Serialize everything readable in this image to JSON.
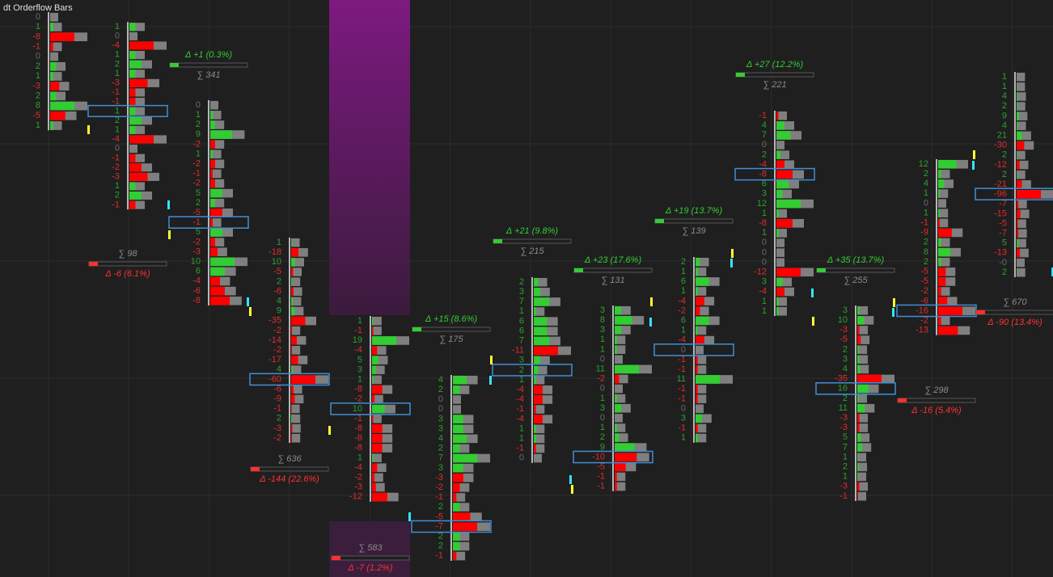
{
  "title": "dt Orderflow Bars",
  "bars": [
    {
      "rows": [
        0,
        1,
        -8,
        -1,
        0,
        2,
        1,
        -3,
        2,
        8,
        -5,
        1
      ]
    },
    {
      "rows": [
        1,
        0,
        -4,
        1,
        2,
        1,
        -3,
        -1,
        -1,
        1,
        2,
        1,
        -4,
        0,
        -1,
        -2,
        -3,
        1,
        2,
        -1
      ],
      "sum": "∑ 98",
      "delta": "Δ -6 (6.1%)"
    },
    {
      "rows": [
        0,
        1,
        2,
        9,
        -2,
        1,
        -2,
        -1,
        -2,
        5,
        2,
        -5,
        -1,
        5,
        -2,
        -3,
        10,
        6,
        -4,
        -6,
        -8
      ],
      "sum": "∑ 341",
      "delta": "Δ +1 (0.3%)"
    },
    {
      "rows": [
        1,
        -18,
        10,
        -5,
        2,
        -6,
        4,
        9,
        -35,
        -2,
        -14,
        -2,
        -17,
        4,
        -60,
        -6,
        -9,
        -1,
        2,
        -3,
        -2
      ],
      "sum": "∑ 636",
      "delta": "Δ -144 (22.6%)"
    },
    {
      "rows": [
        1,
        -1,
        19,
        -4,
        5,
        3,
        1,
        -8,
        -2,
        10,
        -1,
        -8,
        -8,
        -8,
        1,
        -4,
        -2,
        -3,
        -12
      ],
      "sum": "∑ 583",
      "delta": "Δ -7 (1.2%)"
    },
    {
      "rows": [
        4,
        2,
        0,
        0,
        3,
        3,
        4,
        2,
        7,
        3,
        -3,
        -2,
        -1,
        2,
        -5,
        -7,
        2,
        2,
        -1
      ],
      "sum": "∑ 175",
      "delta": "Δ +15 (8.6%)"
    },
    {
      "rows": [
        2,
        3,
        7,
        1,
        6,
        6,
        7,
        -11,
        3,
        2,
        1,
        -4,
        -4,
        -1,
        -4,
        1,
        1,
        -1,
        0
      ],
      "sum": "∑ 215",
      "delta": "Δ +21 (9.8%)"
    },
    {
      "rows": [
        3,
        8,
        3,
        1,
        1,
        0,
        11,
        -2,
        0,
        1,
        3,
        0,
        1,
        2,
        9,
        -10,
        -5,
        -1,
        -1
      ],
      "sum": "∑ 131",
      "delta": "Δ +23 (17.6%)"
    },
    {
      "rows": [
        2,
        1,
        6,
        1,
        -4,
        -2,
        6,
        1,
        -4,
        0,
        -1,
        -1,
        11,
        -1,
        -1,
        0,
        3,
        -1,
        1
      ],
      "sum": "∑ 139",
      "delta": "Δ +19 (13.7%)"
    },
    {
      "rows": [
        -1,
        4,
        7,
        0,
        2,
        -4,
        -8,
        6,
        3,
        12,
        1,
        -8,
        1,
        0,
        0,
        0,
        -12,
        3,
        -4,
        1,
        1
      ],
      "sum": "∑ 221",
      "delta": "Δ +27 (12.2%)"
    },
    {
      "rows": [
        3,
        10,
        -3,
        -5,
        2,
        3,
        4,
        -35,
        16,
        2,
        11,
        -3,
        -3,
        5,
        7,
        1,
        2,
        1,
        -3,
        -1
      ],
      "sum": "∑ 255",
      "delta": "Δ +35 (13.7%)"
    },
    {
      "rows": [
        12,
        2,
        4,
        1,
        0,
        1,
        -1,
        -9,
        2,
        8,
        2,
        -5,
        -5,
        -2,
        -6,
        -16,
        -2,
        -13
      ],
      "sum": "∑ 298",
      "delta": "Δ -16 (5.4%)"
    },
    {
      "rows": [
        1,
        1,
        4,
        2,
        9,
        4,
        21,
        -30,
        2,
        -12,
        2,
        -21,
        -96,
        -7,
        -15,
        -5,
        -7,
        5,
        -13,
        "-0",
        2
      ],
      "sum": "∑ 670",
      "delta": "Δ -90 (13.4%)"
    }
  ]
}
